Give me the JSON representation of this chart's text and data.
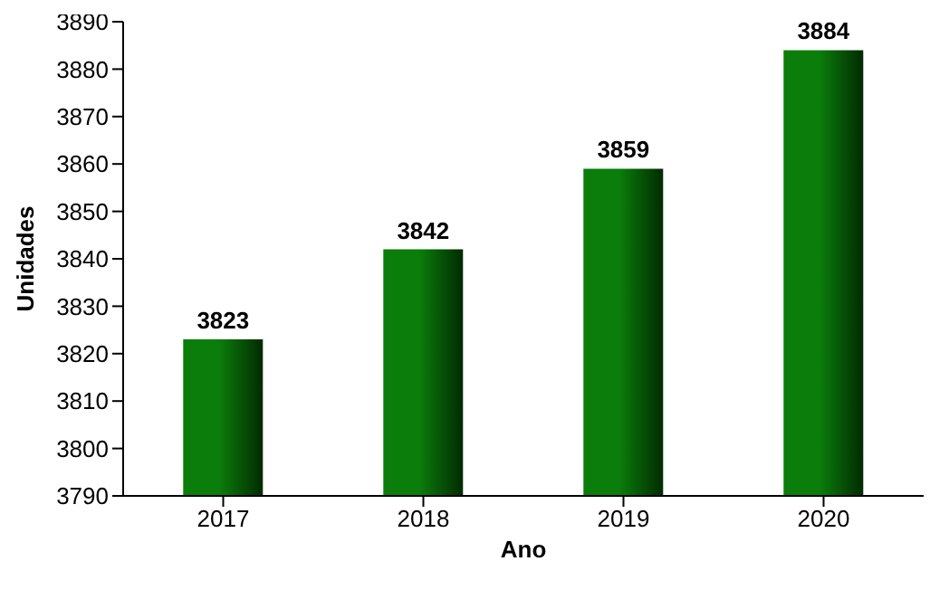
{
  "chart_data": {
    "type": "bar",
    "xlabel": "Ano",
    "ylabel": "Unidades",
    "categories": [
      "2017",
      "2018",
      "2019",
      "2020"
    ],
    "values": [
      3823,
      3842,
      3859,
      3884
    ],
    "color": "#0a7d0a",
    "ylim": [
      3790,
      3890
    ],
    "yticks": [
      3790,
      3800,
      3810,
      3820,
      3830,
      3840,
      3850,
      3860,
      3870,
      3880,
      3890
    ],
    "data_labels": true
  }
}
